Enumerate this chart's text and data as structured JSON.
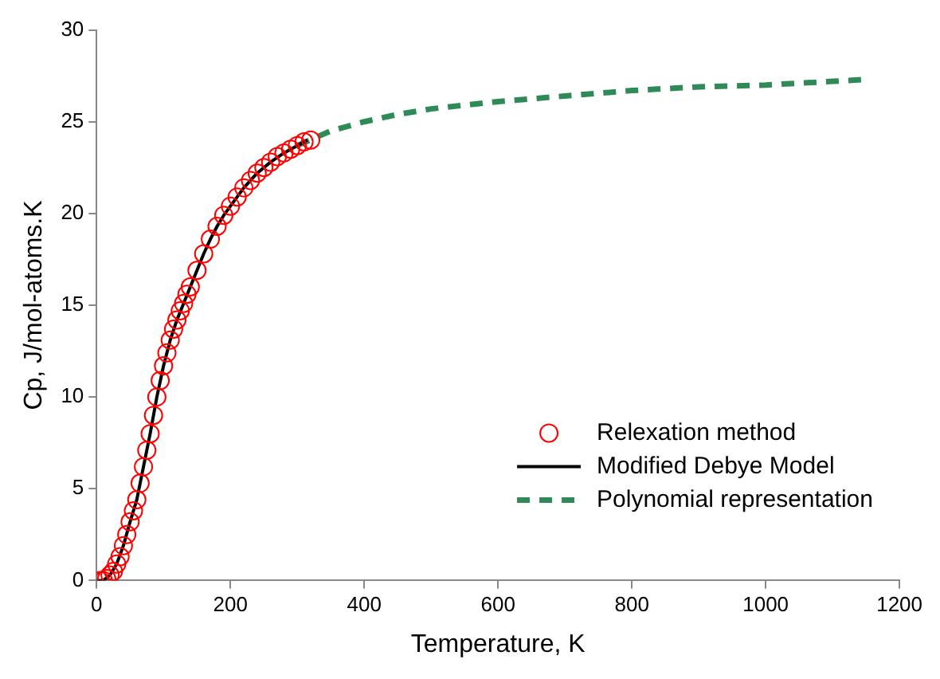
{
  "chart_data": {
    "type": "scatter",
    "xlabel": "Temperature, K",
    "ylabel": "Cp, J/mol-atoms.K",
    "xlim": [
      0,
      1200
    ],
    "xticks": [
      0,
      200,
      400,
      600,
      800,
      1000,
      1200
    ],
    "ylim": [
      0,
      30
    ],
    "yticks": [
      0,
      5,
      10,
      15,
      20,
      25,
      30
    ],
    "grid": false,
    "legend": "bottom right",
    "series": [
      {
        "name": "Relexation method",
        "marker": "circle",
        "color": "#ff0000",
        "x": [
          5,
          10,
          15,
          20,
          25,
          30,
          35,
          40,
          45,
          50,
          55,
          60,
          65,
          70,
          75,
          80,
          85,
          90,
          95,
          100,
          105,
          110,
          115,
          120,
          125,
          130,
          135,
          140,
          150,
          160,
          170,
          180,
          190,
          200,
          210,
          220,
          230,
          240,
          250,
          260,
          270,
          280,
          290,
          300,
          310,
          320
        ],
        "values": [
          0,
          0,
          0.1,
          0.3,
          0.5,
          0.9,
          1.3,
          1.9,
          2.5,
          3.2,
          3.8,
          4.4,
          5.3,
          6.2,
          7.1,
          8.0,
          9.0,
          10.0,
          10.9,
          11.7,
          12.4,
          13.1,
          13.7,
          14.2,
          14.7,
          15.1,
          15.6,
          16.0,
          16.9,
          17.8,
          18.6,
          19.3,
          19.9,
          20.4,
          20.9,
          21.4,
          21.8,
          22.2,
          22.5,
          22.8,
          23.1,
          23.3,
          23.5,
          23.7,
          23.9,
          24.0
        ]
      },
      {
        "name": "Modified Debye Model",
        "type": "line",
        "marker": "none",
        "line_style": "solid",
        "color": "#000000",
        "x": [
          0,
          10,
          20,
          30,
          40,
          50,
          60,
          70,
          80,
          90,
          100,
          110,
          120,
          130,
          140,
          150,
          160,
          170,
          180,
          190,
          200,
          220,
          240,
          260,
          280,
          300,
          315
        ],
        "values": [
          0,
          0,
          0.3,
          0.9,
          1.9,
          3.2,
          4.4,
          6.2,
          8.0,
          10.0,
          11.7,
          13.1,
          14.2,
          15.1,
          16.0,
          16.9,
          17.8,
          18.6,
          19.3,
          19.9,
          20.4,
          21.4,
          22.2,
          22.8,
          23.3,
          23.7,
          24.0
        ]
      },
      {
        "name": "Polynomial representation",
        "type": "line",
        "marker": "none",
        "line_style": "dashed",
        "color": "#2e8b57",
        "x": [
          300,
          350,
          400,
          450,
          500,
          600,
          700,
          800,
          900,
          1000,
          1100,
          1150
        ],
        "values": [
          23.7,
          24.5,
          25.0,
          25.4,
          25.7,
          26.1,
          26.4,
          26.7,
          26.9,
          27.0,
          27.2,
          27.3
        ]
      }
    ]
  }
}
